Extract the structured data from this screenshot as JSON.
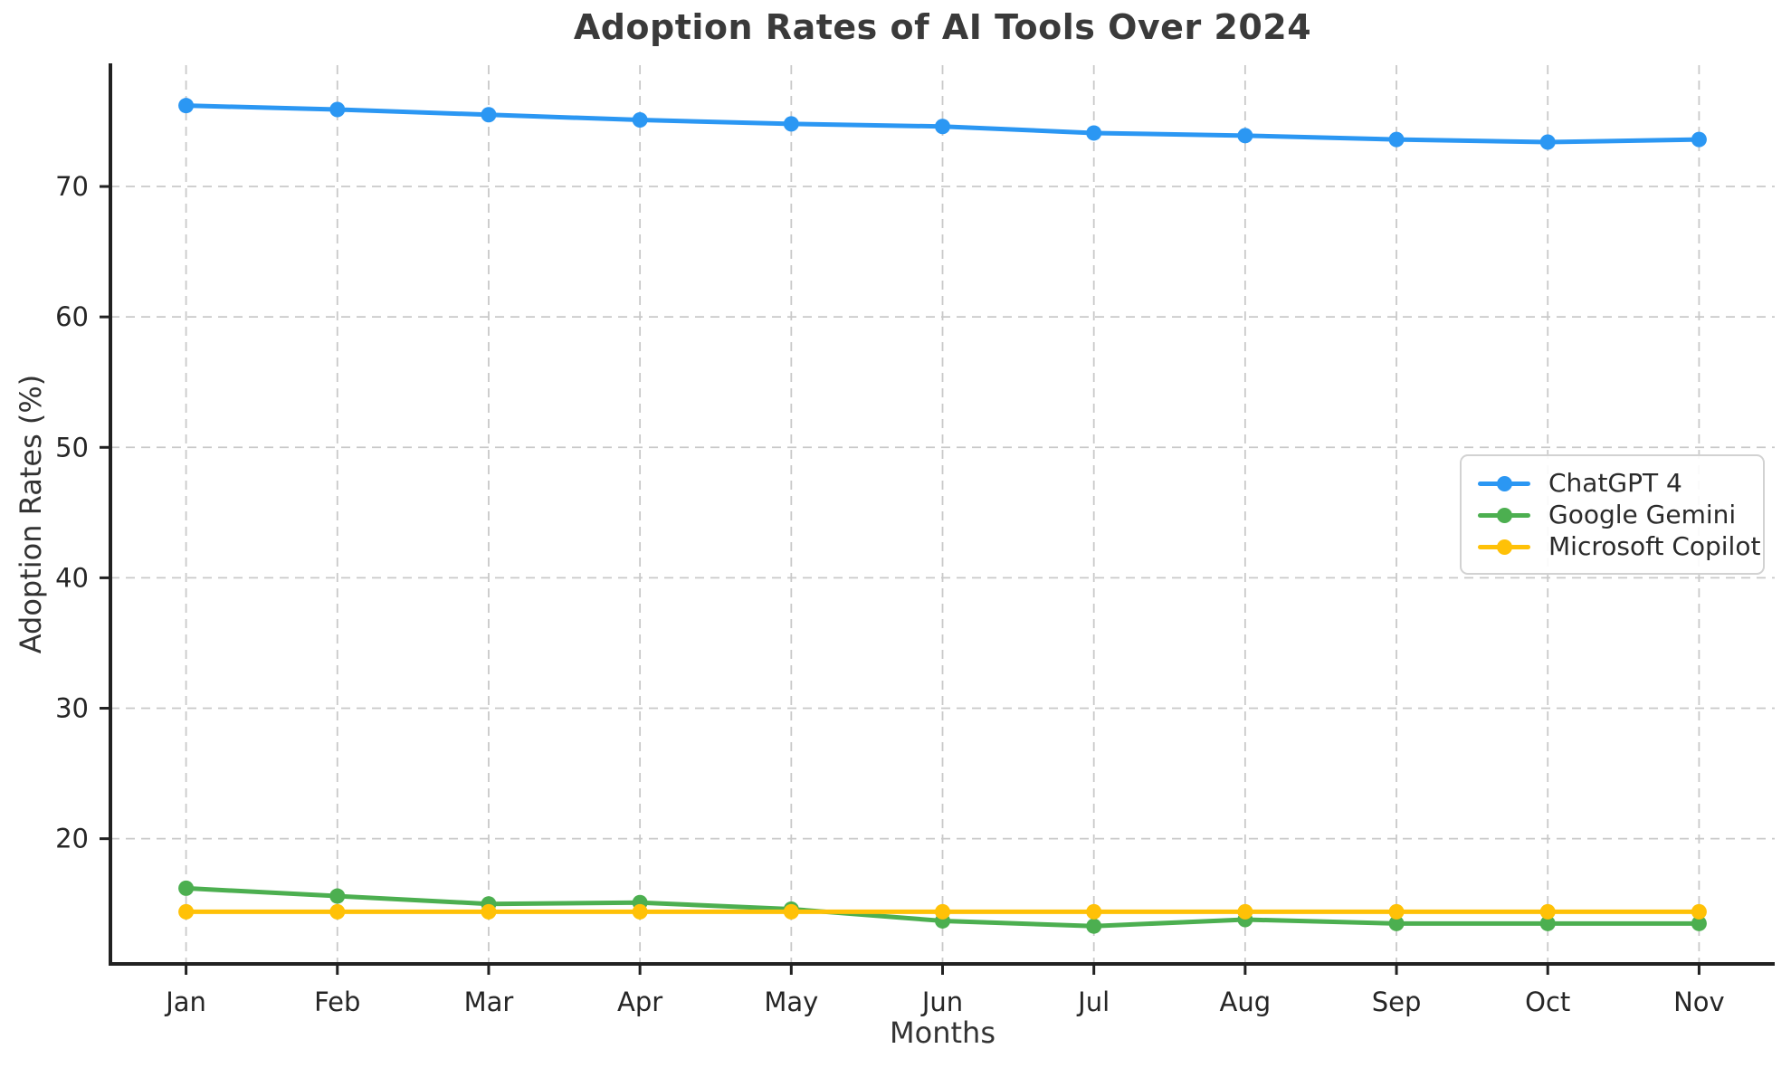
{
  "chart_data": {
    "type": "line",
    "title": "Adoption Rates of AI Tools Over 2024",
    "xlabel": "Months",
    "ylabel": "Adoption Rates (%)",
    "categories": [
      "Jan",
      "Feb",
      "Mar",
      "Apr",
      "May",
      "Jun",
      "Jul",
      "Aug",
      "Sep",
      "Oct",
      "Nov"
    ],
    "y_ticks": [
      20,
      30,
      40,
      50,
      60,
      70
    ],
    "xlim": [
      -0.5,
      10.5
    ],
    "ylim": [
      10.4,
      79.3
    ],
    "grid": true,
    "grid_style": "dashed",
    "legend_position": "center-right",
    "marker": "circle",
    "series": [
      {
        "name": "ChatGPT 4",
        "color": "#2B97F3",
        "values": [
          76.2,
          75.9,
          75.5,
          75.1,
          74.8,
          74.6,
          74.1,
          73.9,
          73.6,
          73.4,
          73.6
        ]
      },
      {
        "name": "Google Gemini",
        "color": "#4CAF50",
        "values": [
          16.2,
          15.6,
          15.0,
          15.1,
          14.6,
          13.7,
          13.3,
          13.8,
          13.5,
          13.5,
          13.5
        ]
      },
      {
        "name": "Microsoft Copilot",
        "color": "#FFC107",
        "values": [
          14.4,
          14.4,
          14.4,
          14.4,
          14.4,
          14.4,
          14.4,
          14.4,
          14.4,
          14.4,
          14.4
        ]
      }
    ]
  }
}
